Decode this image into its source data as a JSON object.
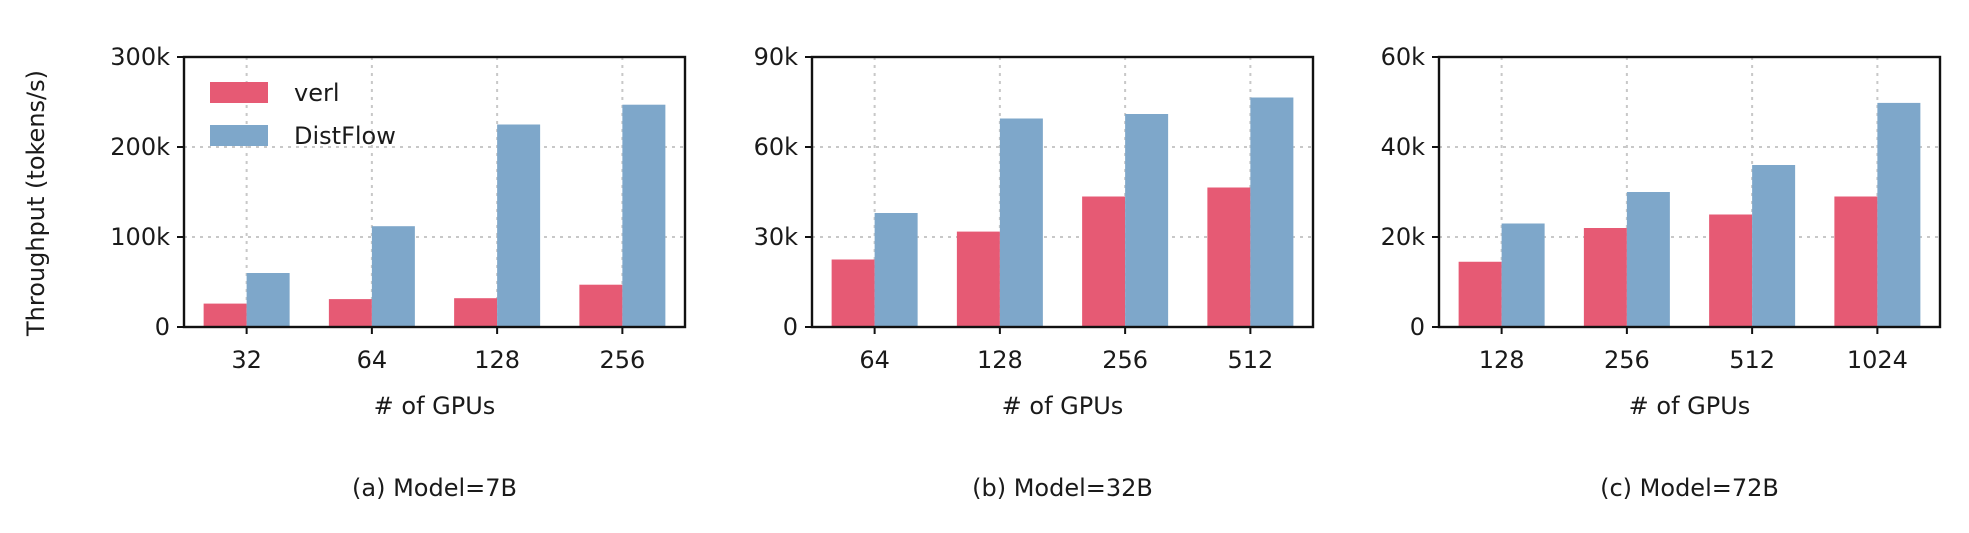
{
  "ylabel": "Throughput (tokens/s)",
  "legend": [
    {
      "name": "verl",
      "color": "#E65A74"
    },
    {
      "name": "DistFlow",
      "color": "#7EA7CA"
    }
  ],
  "chart_data": [
    {
      "type": "bar",
      "caption": "(a) Model=7B",
      "xlabel": "# of GPUs",
      "categories": [
        "32",
        "64",
        "128",
        "256"
      ],
      "ylim": [
        0,
        300000
      ],
      "yticks": [
        0,
        100000,
        200000,
        300000
      ],
      "ytick_labels": [
        "0",
        "100k",
        "200k",
        "300k"
      ],
      "grid": true,
      "legend_position": "top-left",
      "series": [
        {
          "name": "verl",
          "values": [
            26000,
            31000,
            32000,
            47000
          ]
        },
        {
          "name": "DistFlow",
          "values": [
            60000,
            112000,
            225000,
            247000
          ]
        }
      ]
    },
    {
      "type": "bar",
      "caption": "(b) Model=32B",
      "xlabel": "# of GPUs",
      "categories": [
        "64",
        "128",
        "256",
        "512"
      ],
      "ylim": [
        0,
        90000
      ],
      "yticks": [
        0,
        30000,
        60000,
        90000
      ],
      "ytick_labels": [
        "0",
        "30k",
        "60k",
        "90k"
      ],
      "grid": true,
      "series": [
        {
          "name": "verl",
          "values": [
            22500,
            31800,
            43500,
            46500
          ]
        },
        {
          "name": "DistFlow",
          "values": [
            38000,
            69500,
            71000,
            76500
          ]
        }
      ]
    },
    {
      "type": "bar",
      "caption": "(c) Model=72B",
      "xlabel": "# of GPUs",
      "categories": [
        "128",
        "256",
        "512",
        "1024"
      ],
      "ylim": [
        0,
        60000
      ],
      "yticks": [
        0,
        20000,
        40000,
        60000
      ],
      "ytick_labels": [
        "0",
        "20k",
        "40k",
        "60k"
      ],
      "grid": true,
      "series": [
        {
          "name": "verl",
          "values": [
            14500,
            22000,
            25000,
            29000
          ]
        },
        {
          "name": "DistFlow",
          "values": [
            23000,
            30000,
            36000,
            49800
          ]
        }
      ]
    }
  ]
}
